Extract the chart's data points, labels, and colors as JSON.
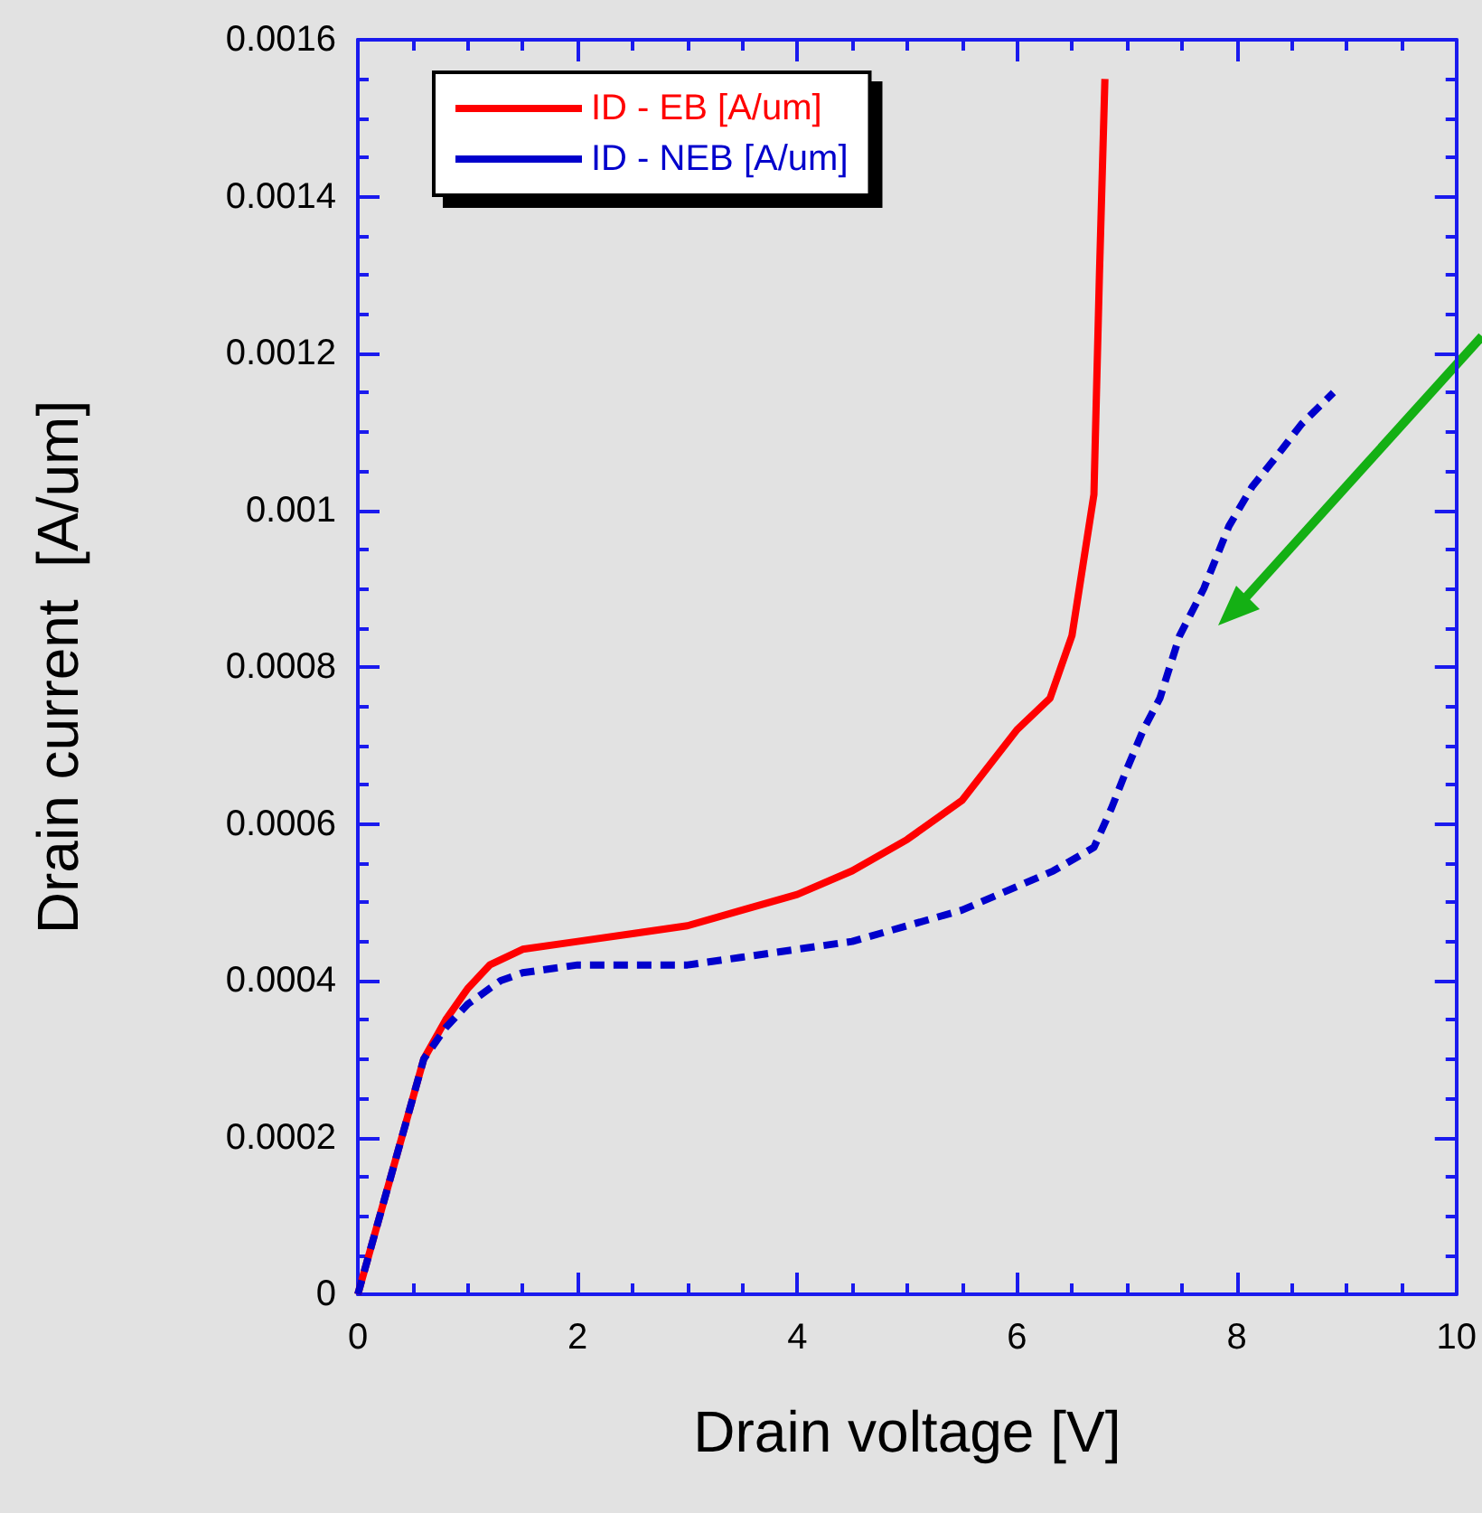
{
  "chart_data": {
    "type": "line",
    "xlabel": "Drain voltage [V]",
    "ylabel": "Drain current  [A/um]",
    "xlim": [
      0,
      10
    ],
    "xticks": [
      0,
      2,
      4,
      6,
      8,
      10
    ],
    "ylim": [
      0,
      0.0016
    ],
    "yticks": [
      0,
      0.0002,
      0.0004,
      0.0006,
      0.0008,
      0.001,
      0.0012,
      0.0014,
      0.0016
    ],
    "grid": false,
    "legend": "top left",
    "marker": "none",
    "series": [
      {
        "name": "ID - EB [A/um]",
        "color": "#ff0000",
        "line_style": "solid",
        "x": [
          0,
          0.2,
          0.4,
          0.6,
          0.8,
          1.0,
          1.2,
          1.5,
          2,
          2.5,
          3,
          3.5,
          4,
          4.5,
          5,
          5.5,
          6,
          6.3,
          6.5,
          6.7,
          6.75,
          6.8
        ],
        "values": [
          0,
          0.0001,
          0.0002,
          0.0003,
          0.00035,
          0.00039,
          0.00042,
          0.00044,
          0.00045,
          0.00046,
          0.00047,
          0.00049,
          0.00051,
          0.00054,
          0.00058,
          0.00063,
          0.00072,
          0.00076,
          0.00084,
          0.00102,
          0.0013,
          0.00155
        ]
      },
      {
        "name": "ID - NEB [A/um]",
        "color": "#0000cc",
        "line_style": "dashed",
        "x": [
          0,
          0.2,
          0.4,
          0.6,
          0.8,
          1.0,
          1.3,
          1.5,
          2,
          2.5,
          3,
          3.5,
          4,
          4.5,
          5,
          5.5,
          6,
          6.33,
          6.7,
          6.86,
          7.0,
          7.15,
          7.3,
          7.48,
          7.7,
          7.93,
          8.14,
          8.37,
          8.59,
          8.88
        ],
        "values": [
          0,
          0.0001,
          0.0002,
          0.0003,
          0.00034,
          0.00037,
          0.0004,
          0.00041,
          0.00042,
          0.00042,
          0.00042,
          0.00043,
          0.00044,
          0.00045,
          0.00047,
          0.00049,
          0.00052,
          0.00054,
          0.00057,
          0.00062,
          0.00067,
          0.00072,
          0.00076,
          0.00084,
          0.0009,
          0.00098,
          0.00103,
          0.00107,
          0.00111,
          0.00115
        ]
      }
    ]
  }
}
